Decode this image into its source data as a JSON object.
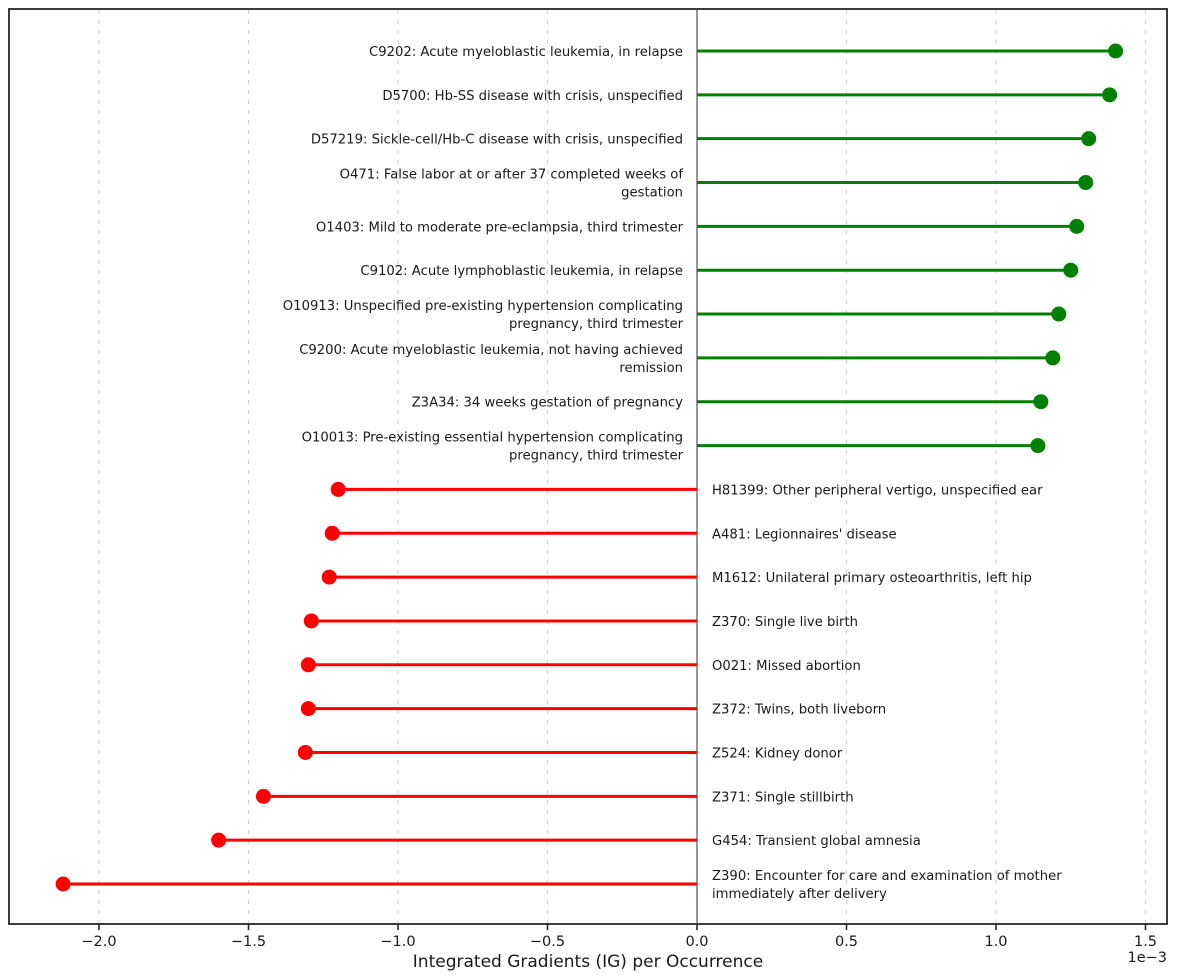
{
  "chart_data": {
    "type": "bar",
    "variant": "horizontal-lollipop-stem",
    "title": "",
    "xlabel": "Integrated Gradients (IG) per Occurrence",
    "ylabel": "",
    "x_offset_label": "1e−3",
    "x_unit_multiplier": 0.001,
    "xlim_e3": [
      -2.3,
      1.57
    ],
    "x_tick_values": [
      -2.0,
      -1.5,
      -1.0,
      -0.5,
      0.0,
      0.5,
      1.0,
      1.5
    ],
    "x_tick_labels": [
      "−2.0",
      "−1.5",
      "−1.0",
      "−0.5",
      "0.0",
      "0.5",
      "1.0",
      "1.5"
    ],
    "grid": "vertical-dashed",
    "zero_line": true,
    "legend": "none",
    "colors": {
      "positive": "#008000",
      "negative": "#ff0000",
      "grid": "#d4d4d4",
      "zero_line": "#7f7f7f",
      "spine": "#262626",
      "text": "#1a1a1a",
      "background": "#ffffff"
    },
    "items": [
      {
        "code": "C9202",
        "value_e3": 1.4,
        "label_lines": [
          "C9202: Acute myeloblastic leukemia, in relapse"
        ]
      },
      {
        "code": "D5700",
        "value_e3": 1.38,
        "label_lines": [
          "D5700: Hb-SS disease with crisis, unspecified"
        ]
      },
      {
        "code": "D57219",
        "value_e3": 1.31,
        "label_lines": [
          "D57219: Sickle-cell/Hb-C disease with crisis, unspecified"
        ]
      },
      {
        "code": "O471",
        "value_e3": 1.3,
        "label_lines": [
          "O471: False labor at or after 37 completed weeks of",
          "gestation"
        ]
      },
      {
        "code": "O1403",
        "value_e3": 1.27,
        "label_lines": [
          "O1403: Mild to moderate pre-eclampsia, third trimester"
        ]
      },
      {
        "code": "C9102",
        "value_e3": 1.25,
        "label_lines": [
          "C9102: Acute lymphoblastic leukemia, in relapse"
        ]
      },
      {
        "code": "O10913",
        "value_e3": 1.21,
        "label_lines": [
          "O10913: Unspecified pre-existing hypertension complicating",
          "pregnancy, third trimester"
        ]
      },
      {
        "code": "C9200",
        "value_e3": 1.19,
        "label_lines": [
          "C9200: Acute myeloblastic leukemia, not having achieved",
          "remission"
        ]
      },
      {
        "code": "Z3A34",
        "value_e3": 1.15,
        "label_lines": [
          "Z3A34: 34 weeks gestation of pregnancy"
        ]
      },
      {
        "code": "O10013",
        "value_e3": 1.14,
        "label_lines": [
          "O10013: Pre-existing essential hypertension complicating",
          "pregnancy, third trimester"
        ]
      },
      {
        "code": "H81399",
        "value_e3": -1.2,
        "label_lines": [
          "H81399: Other peripheral vertigo, unspecified ear"
        ]
      },
      {
        "code": "A481",
        "value_e3": -1.22,
        "label_lines": [
          "A481: Legionnaires' disease"
        ]
      },
      {
        "code": "M1612",
        "value_e3": -1.23,
        "label_lines": [
          "M1612: Unilateral primary osteoarthritis, left hip"
        ]
      },
      {
        "code": "Z370",
        "value_e3": -1.29,
        "label_lines": [
          "Z370: Single live birth"
        ]
      },
      {
        "code": "O021",
        "value_e3": -1.3,
        "label_lines": [
          "O021: Missed abortion"
        ]
      },
      {
        "code": "Z372",
        "value_e3": -1.3,
        "label_lines": [
          "Z372: Twins, both liveborn"
        ]
      },
      {
        "code": "Z524",
        "value_e3": -1.31,
        "label_lines": [
          "Z524: Kidney donor"
        ]
      },
      {
        "code": "Z371",
        "value_e3": -1.45,
        "label_lines": [
          "Z371: Single stillbirth"
        ]
      },
      {
        "code": "G454",
        "value_e3": -1.6,
        "label_lines": [
          "G454: Transient global amnesia"
        ]
      },
      {
        "code": "Z390",
        "value_e3": -2.12,
        "label_lines": [
          "Z390: Encounter for care and examination of mother",
          "immediately after delivery"
        ]
      }
    ]
  }
}
